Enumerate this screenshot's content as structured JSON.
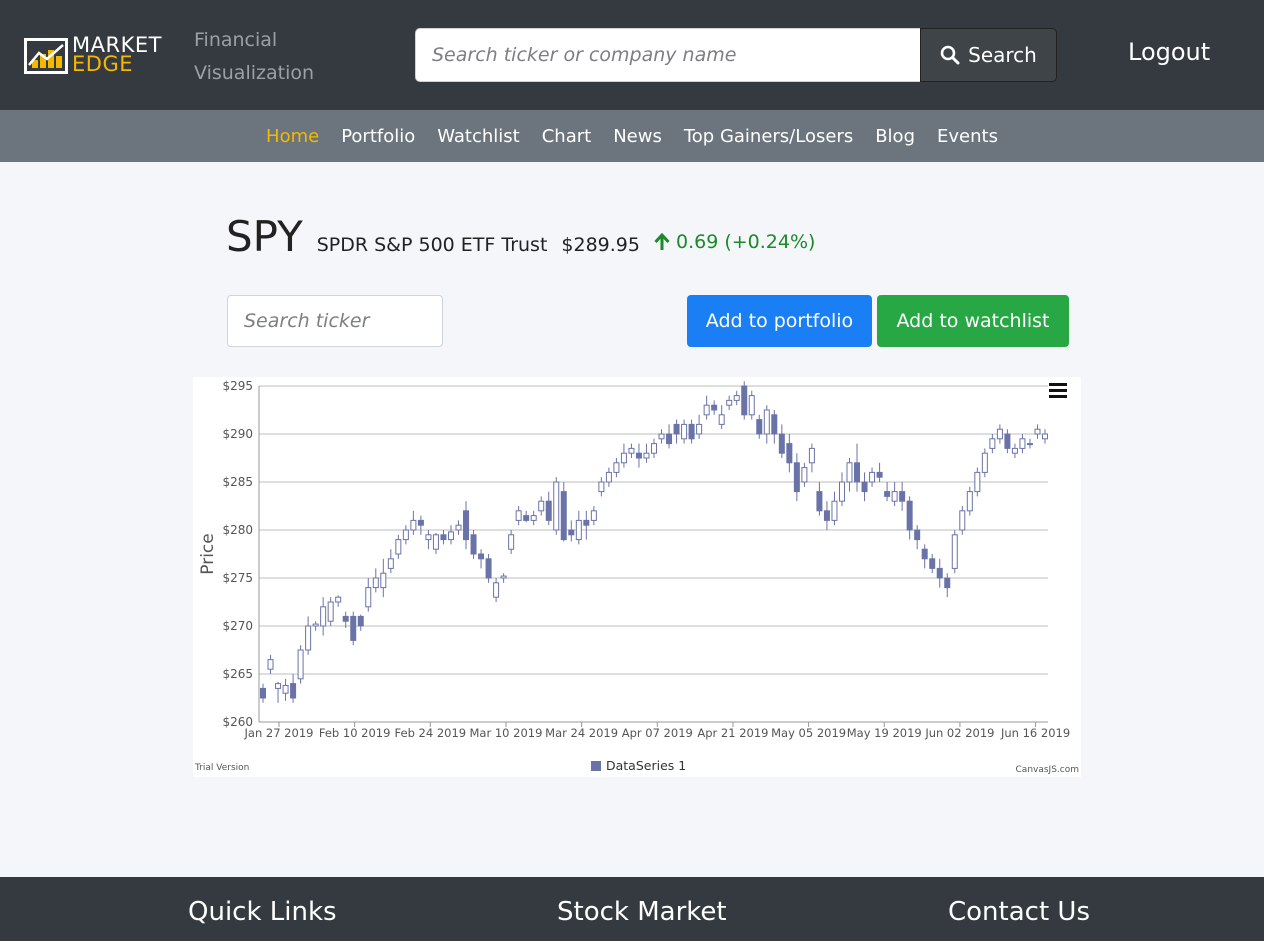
{
  "brand": {
    "logo_line1": "MARKET",
    "logo_line2": "EDGE",
    "subtitle_line1": "Financial",
    "subtitle_line2": "Visualization",
    "accent_color": "#f5b800"
  },
  "header": {
    "search_placeholder": "Search ticker or company name",
    "search_button": "Search",
    "logout": "Logout"
  },
  "nav": {
    "items": [
      "Home",
      "Portfolio",
      "Watchlist",
      "Chart",
      "News",
      "Top Gainers/Losers",
      "Blog",
      "Events"
    ],
    "active": "Home"
  },
  "stock": {
    "symbol": "SPY",
    "name": "SPDR S&P 500 ETF Trust",
    "price": "$289.95",
    "change": "0.69 (+0.24%)",
    "direction": "up",
    "change_color": "#1a8a2a"
  },
  "controls": {
    "ticker_search_placeholder": "Search ticker",
    "add_portfolio": "Add to portfolio",
    "add_watchlist": "Add to watchlist"
  },
  "chart_data": {
    "type": "candlestick",
    "ylabel": "Price",
    "ylim": [
      260,
      295
    ],
    "y_ticks": [
      "$260",
      "$265",
      "$270",
      "$275",
      "$280",
      "$285",
      "$290",
      "$295"
    ],
    "x_ticks": [
      "Jan 27 2019",
      "Feb 10 2019",
      "Feb 24 2019",
      "Mar 10 2019",
      "Mar 24 2019",
      "Apr 07 2019",
      "Apr 21 2019",
      "May 05 2019",
      "May 19 2019",
      "Jun 02 2019",
      "Jun 16 2019"
    ],
    "x_start": "2019-01-24",
    "grid": true,
    "legend": "DataSeries 1",
    "legend_position": "bottom-center",
    "series_color": "#6a73a8",
    "trial_label": "Trial Version",
    "credit_label": "CanvasJS.com",
    "candles": [
      [
        263.5,
        262.5,
        264,
        262
      ],
      [
        265.5,
        266.5,
        267,
        265
      ],
      [
        263.5,
        264,
        264.2,
        262
      ],
      [
        263,
        263.8,
        264.5,
        262.2
      ],
      [
        264,
        262.5,
        265,
        262
      ],
      [
        264.5,
        267.5,
        268,
        264
      ],
      [
        267.5,
        270,
        271,
        267
      ],
      [
        270,
        270.2,
        270.5,
        269.5
      ],
      [
        270,
        272,
        273,
        269
      ],
      [
        270.5,
        272.5,
        273,
        270
      ],
      [
        272.5,
        273,
        273.2,
        272
      ],
      [
        271,
        270.5,
        271.5,
        269.8
      ],
      [
        271,
        268.5,
        271.5,
        268
      ],
      [
        271,
        270,
        271.2,
        269.5
      ],
      [
        272,
        274,
        275,
        271.5
      ],
      [
        274,
        275,
        276,
        273.5
      ],
      [
        274,
        275.5,
        277,
        273
      ],
      [
        276,
        277,
        278,
        275.5
      ],
      [
        277.5,
        279,
        279.5,
        277
      ],
      [
        279,
        280,
        280.5,
        278.5
      ],
      [
        280,
        281,
        282,
        279.5
      ],
      [
        281,
        280.5,
        281.5,
        279.5
      ],
      [
        279,
        279.5,
        280,
        278
      ],
      [
        278,
        279.5,
        279.7,
        277.5
      ],
      [
        279.5,
        279,
        280,
        278.5
      ],
      [
        279,
        279.8,
        280.5,
        278.5
      ],
      [
        280,
        280.5,
        281,
        279.5
      ],
      [
        282,
        279,
        283,
        278
      ],
      [
        279.5,
        277.5,
        280,
        277
      ],
      [
        277.5,
        277,
        278,
        276
      ],
      [
        277,
        275,
        277.5,
        274.5
      ],
      [
        273,
        274.5,
        275,
        272.5
      ],
      [
        275,
        275.2,
        275.5,
        274.5
      ],
      [
        278,
        279.5,
        280,
        277.5
      ],
      [
        281,
        282,
        282.5,
        280.5
      ],
      [
        281.5,
        281,
        282,
        280.8
      ],
      [
        281,
        281.5,
        282,
        280.5
      ],
      [
        282,
        283,
        283.5,
        281.5
      ],
      [
        283,
        281,
        284,
        280.5
      ],
      [
        280,
        285,
        285.5,
        279.5
      ],
      [
        284,
        279,
        285,
        278.8
      ],
      [
        280,
        279.5,
        281,
        278.8
      ],
      [
        279,
        281,
        282,
        278.5
      ],
      [
        281,
        280.5,
        282,
        279
      ],
      [
        281,
        282,
        282.5,
        280.5
      ],
      [
        284,
        285,
        285.5,
        283.5
      ],
      [
        285,
        286,
        286.5,
        284.5
      ],
      [
        286,
        287,
        287.5,
        285.5
      ],
      [
        287,
        288,
        289,
        286.5
      ],
      [
        288,
        288.5,
        289,
        287.5
      ],
      [
        288,
        287.5,
        289,
        286.5
      ],
      [
        287.5,
        288,
        289,
        287
      ],
      [
        288,
        289,
        289.5,
        287.5
      ],
      [
        289.5,
        290,
        290.5,
        289
      ],
      [
        290,
        289,
        291,
        288.5
      ],
      [
        291,
        290,
        291.5,
        289
      ],
      [
        289.5,
        291,
        291.5,
        289
      ],
      [
        291,
        289.5,
        291.5,
        289
      ],
      [
        290,
        291,
        292,
        289.5
      ],
      [
        292,
        293,
        294,
        291.5
      ],
      [
        293,
        292.5,
        293.5,
        292
      ],
      [
        291,
        292,
        293,
        290.5
      ],
      [
        293,
        293.5,
        294,
        292.5
      ],
      [
        293.5,
        294,
        294.5,
        293
      ],
      [
        295,
        292,
        295.5,
        291.5
      ],
      [
        292,
        294,
        294.5,
        291.5
      ],
      [
        291.5,
        290,
        292,
        289.5
      ],
      [
        290,
        292.5,
        293,
        289
      ],
      [
        292,
        290,
        292.5,
        289
      ],
      [
        290,
        288,
        291,
        287.5
      ],
      [
        289,
        287,
        290,
        286
      ],
      [
        287,
        284,
        288,
        283
      ],
      [
        285,
        286.5,
        287,
        284.5
      ],
      [
        287,
        288.5,
        289,
        286
      ],
      [
        284,
        282,
        285,
        281.5
      ],
      [
        282,
        281,
        283,
        280
      ],
      [
        281,
        283,
        284,
        280.5
      ],
      [
        283,
        285,
        286,
        282.5
      ],
      [
        285,
        287,
        287.5,
        284
      ],
      [
        287,
        285,
        289,
        284
      ],
      [
        285,
        284,
        286,
        283
      ],
      [
        285,
        286,
        286.5,
        284.5
      ],
      [
        286,
        285.5,
        287,
        285
      ],
      [
        284,
        283.5,
        285,
        283
      ],
      [
        283,
        284,
        285,
        282.5
      ],
      [
        284,
        283,
        285,
        282
      ],
      [
        283,
        280,
        283.5,
        279
      ],
      [
        280,
        279,
        280.5,
        278
      ],
      [
        278,
        277,
        278.5,
        276
      ],
      [
        277,
        276,
        277.5,
        275.5
      ],
      [
        276,
        275,
        277,
        274
      ],
      [
        275,
        274,
        275.5,
        273
      ],
      [
        276,
        279.5,
        280,
        275.5
      ],
      [
        280,
        282,
        282.5,
        279.5
      ],
      [
        282,
        284,
        284.5,
        281.5
      ],
      [
        284,
        286,
        286.5,
        283.5
      ],
      [
        286,
        288,
        288.5,
        285.5
      ],
      [
        288.5,
        289.5,
        290,
        288
      ],
      [
        289.5,
        290.5,
        291,
        289
      ],
      [
        290,
        288.5,
        290.5,
        288
      ],
      [
        288,
        288.5,
        289,
        287.5
      ],
      [
        288.5,
        289.5,
        290,
        288
      ],
      [
        289,
        289,
        289.5,
        288.5
      ],
      [
        290,
        290.5,
        291,
        289.5
      ],
      [
        289.5,
        290,
        290.5,
        289
      ]
    ]
  },
  "footer": {
    "col1": "Quick Links",
    "col2": "Stock Market",
    "col3": "Contact Us"
  }
}
